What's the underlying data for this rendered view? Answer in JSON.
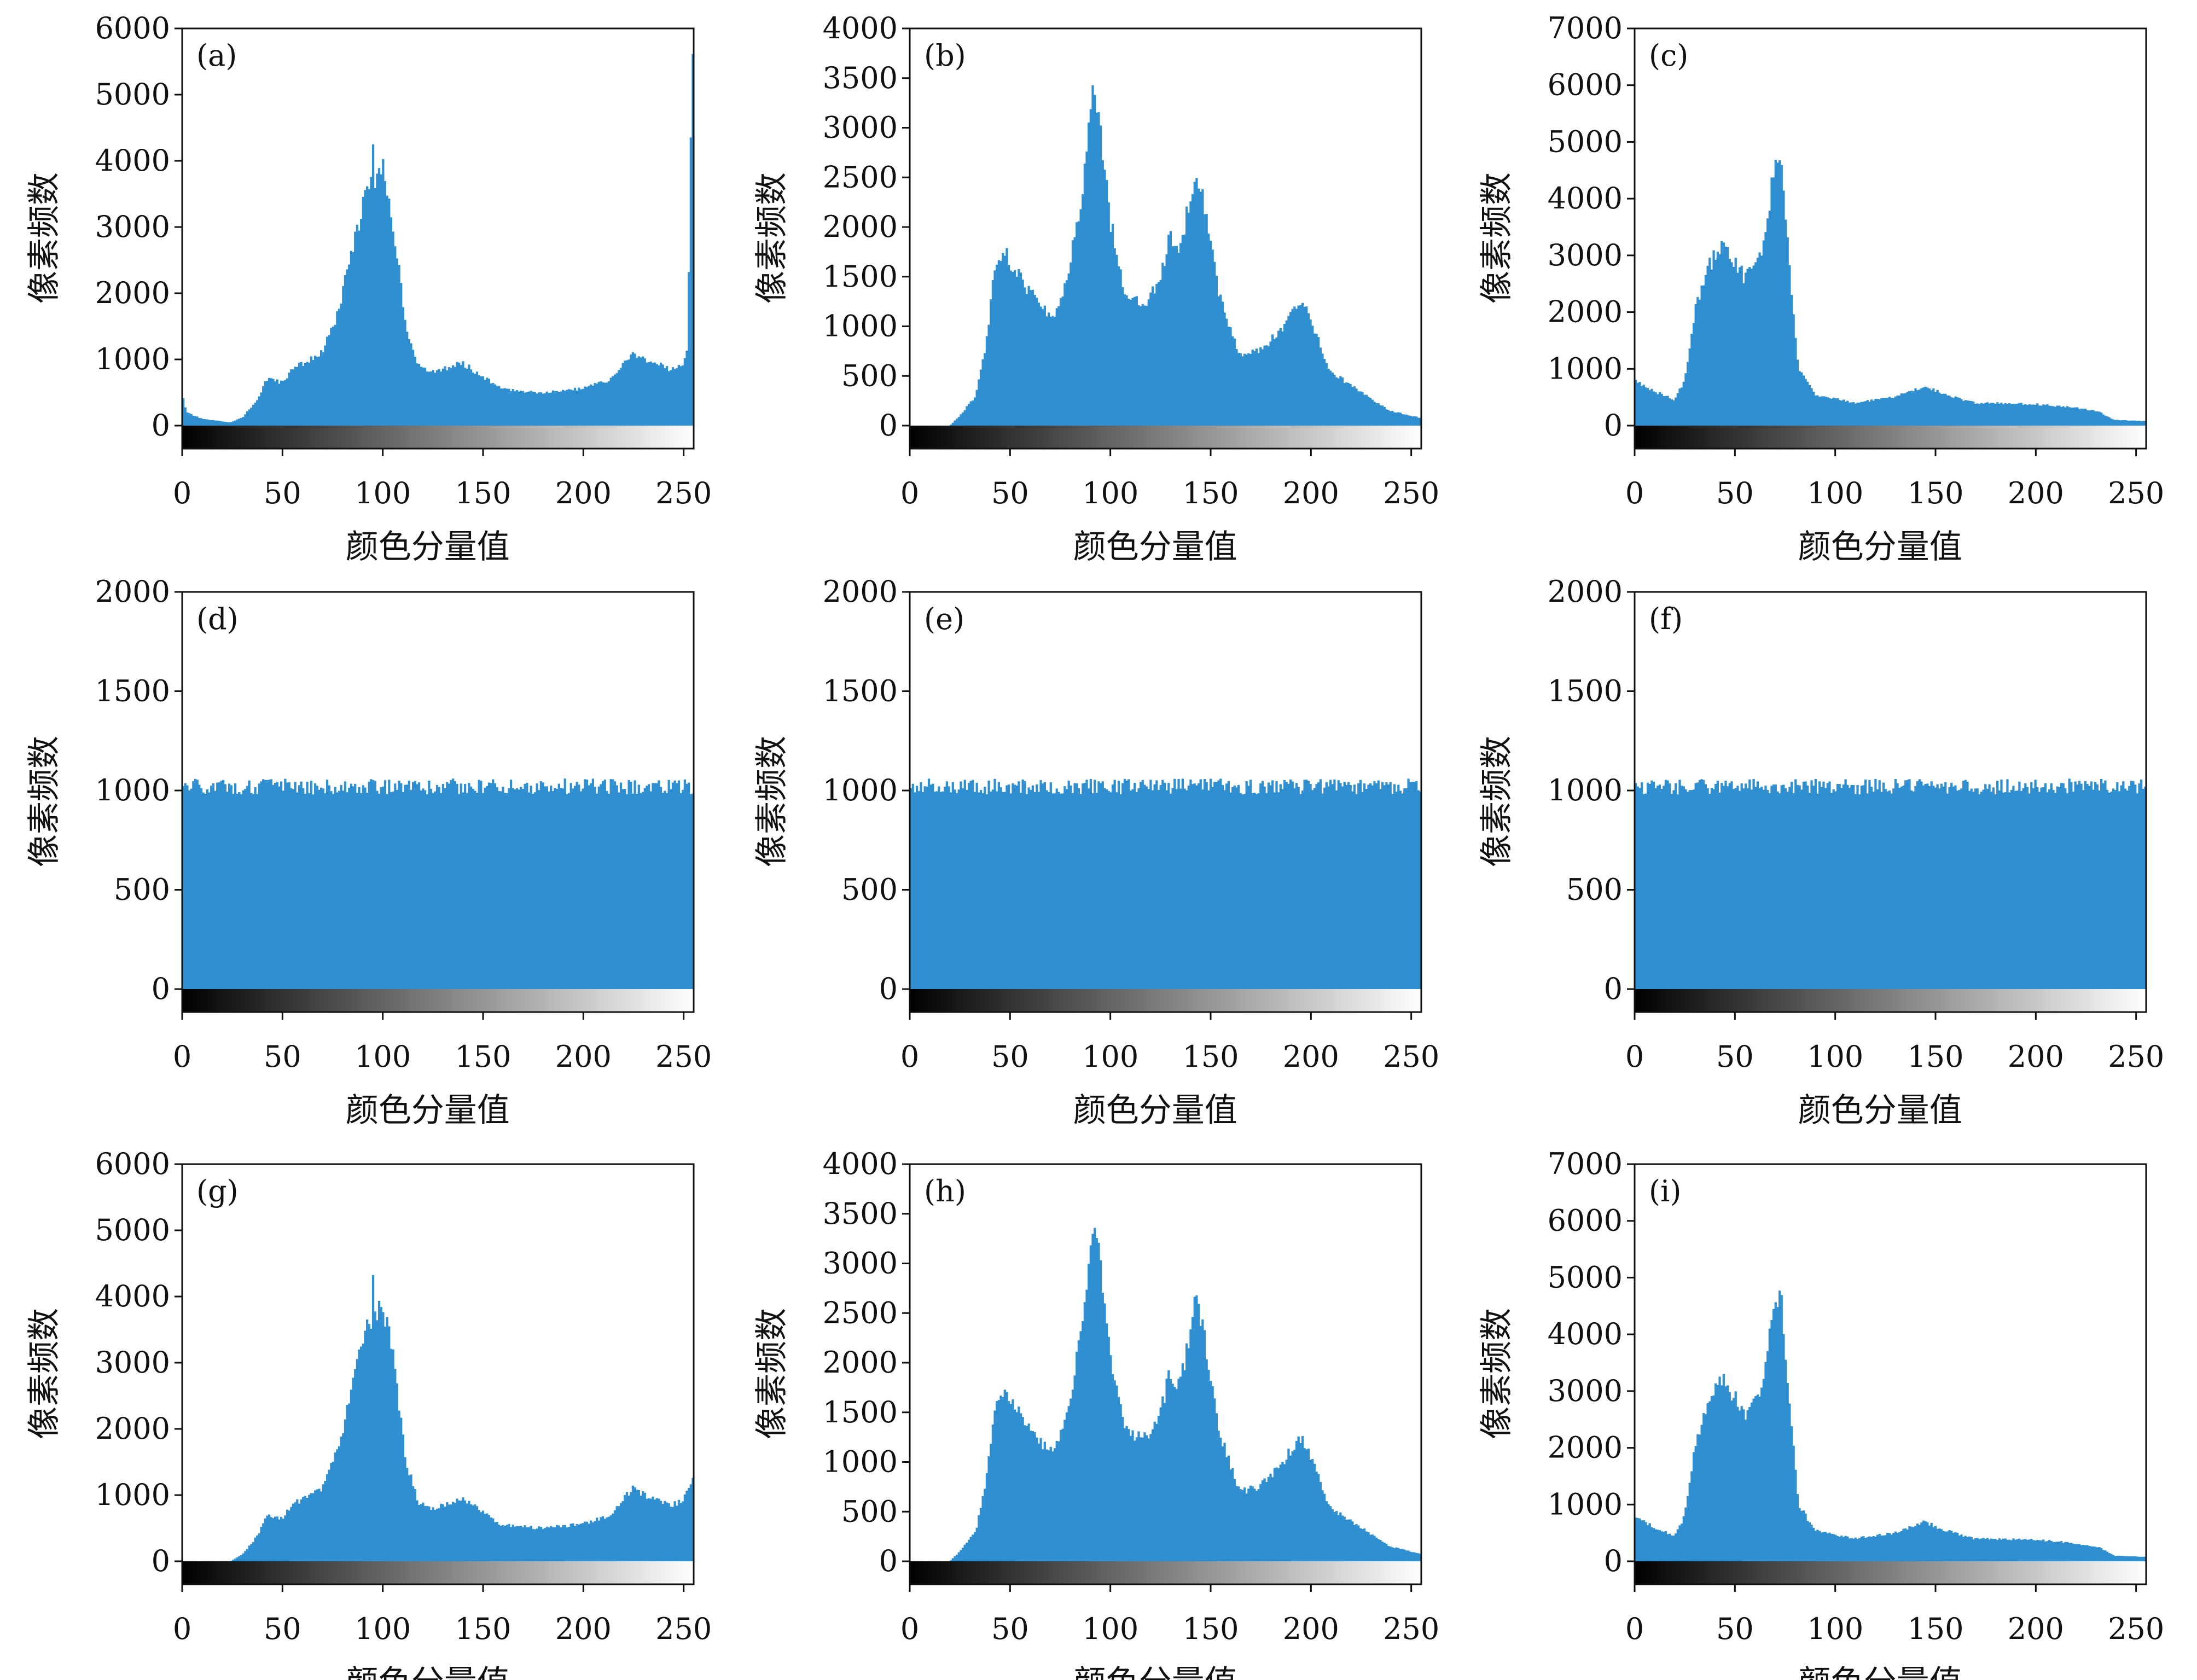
{
  "figure": {
    "description": "3x3 grid of pixel-frequency histograms",
    "bar_color": "#2f8fd0",
    "gradient": [
      "#000000",
      "#ffffff"
    ]
  },
  "chart_data": [
    {
      "type": "histogram",
      "panel_label": "(a)",
      "xlabel": "颜色分量值",
      "ylabel": "像素频数",
      "xlim": [
        0,
        255
      ],
      "ylim": [
        0,
        6000
      ],
      "xticks": [
        0,
        50,
        100,
        150,
        200,
        250
      ],
      "yticks": [
        0,
        1000,
        2000,
        3000,
        4000,
        5000,
        6000
      ],
      "profile": [
        [
          0,
          500
        ],
        [
          2,
          200
        ],
        [
          10,
          100
        ],
        [
          24,
          50
        ],
        [
          30,
          120
        ],
        [
          38,
          400
        ],
        [
          42,
          700
        ],
        [
          50,
          650
        ],
        [
          55,
          850
        ],
        [
          70,
          1100
        ],
        [
          78,
          1700
        ],
        [
          84,
          2500
        ],
        [
          90,
          3300
        ],
        [
          95,
          3700
        ],
        [
          100,
          3800
        ],
        [
          104,
          3400
        ],
        [
          108,
          2500
        ],
        [
          112,
          1500
        ],
        [
          118,
          900
        ],
        [
          125,
          800
        ],
        [
          140,
          950
        ],
        [
          150,
          750
        ],
        [
          160,
          550
        ],
        [
          180,
          500
        ],
        [
          200,
          560
        ],
        [
          215,
          700
        ],
        [
          225,
          1100
        ],
        [
          235,
          950
        ],
        [
          245,
          850
        ],
        [
          250,
          900
        ],
        [
          253,
          1200
        ],
        [
          255,
          5500
        ]
      ],
      "spikes": [
        [
          95,
          4150
        ],
        [
          100,
          3850
        ]
      ]
    },
    {
      "type": "histogram",
      "panel_label": "(b)",
      "xlabel": "颜色分量值",
      "ylabel": "像素频数",
      "xlim": [
        0,
        255
      ],
      "ylim": [
        0,
        4000
      ],
      "xticks": [
        0,
        50,
        100,
        150,
        200,
        250
      ],
      "yticks": [
        0,
        500,
        1000,
        1500,
        2000,
        2500,
        3000,
        3500,
        4000
      ],
      "profile": [
        [
          0,
          0
        ],
        [
          20,
          0
        ],
        [
          25,
          100
        ],
        [
          33,
          300
        ],
        [
          38,
          800
        ],
        [
          42,
          1500
        ],
        [
          47,
          1750
        ],
        [
          55,
          1500
        ],
        [
          65,
          1200
        ],
        [
          72,
          1100
        ],
        [
          78,
          1400
        ],
        [
          85,
          2200
        ],
        [
          90,
          3000
        ],
        [
          92,
          3450
        ],
        [
          95,
          3100
        ],
        [
          100,
          2100
        ],
        [
          108,
          1300
        ],
        [
          118,
          1250
        ],
        [
          125,
          1450
        ],
        [
          130,
          1900
        ],
        [
          135,
          1750
        ],
        [
          140,
          2300
        ],
        [
          143,
          2600
        ],
        [
          148,
          2200
        ],
        [
          155,
          1300
        ],
        [
          165,
          700
        ],
        [
          175,
          750
        ],
        [
          185,
          950
        ],
        [
          195,
          1250
        ],
        [
          200,
          1100
        ],
        [
          210,
          550
        ],
        [
          225,
          350
        ],
        [
          240,
          150
        ],
        [
          255,
          80
        ]
      ],
      "spikes": [
        [
          92,
          3500
        ]
      ]
    },
    {
      "type": "histogram",
      "panel_label": "(c)",
      "xlabel": "颜色分量值",
      "ylabel": "像素频数",
      "xlim": [
        0,
        255
      ],
      "ylim": [
        0,
        7000
      ],
      "xticks": [
        0,
        50,
        100,
        150,
        200,
        250
      ],
      "yticks": [
        0,
        1000,
        2000,
        3000,
        4000,
        5000,
        6000,
        7000
      ],
      "profile": [
        [
          0,
          800
        ],
        [
          10,
          600
        ],
        [
          20,
          450
        ],
        [
          25,
          800
        ],
        [
          30,
          2000
        ],
        [
          37,
          2800
        ],
        [
          44,
          3200
        ],
        [
          50,
          2900
        ],
        [
          55,
          2600
        ],
        [
          62,
          2900
        ],
        [
          66,
          3500
        ],
        [
          70,
          4600
        ],
        [
          73,
          4700
        ],
        [
          77,
          3000
        ],
        [
          82,
          1000
        ],
        [
          90,
          550
        ],
        [
          110,
          400
        ],
        [
          130,
          500
        ],
        [
          145,
          700
        ],
        [
          155,
          550
        ],
        [
          170,
          400
        ],
        [
          200,
          380
        ],
        [
          220,
          320
        ],
        [
          232,
          250
        ],
        [
          240,
          100
        ],
        [
          255,
          80
        ]
      ],
      "spikes": []
    },
    {
      "type": "histogram",
      "panel_label": "(d)",
      "xlabel": "颜色分量值",
      "ylabel": "像素频数",
      "xlim": [
        0,
        255
      ],
      "ylim": [
        0,
        2000
      ],
      "xticks": [
        0,
        50,
        100,
        150,
        200,
        250
      ],
      "yticks": [
        0,
        500,
        1000,
        1500,
        2000
      ],
      "profile": [
        [
          0,
          1020
        ],
        [
          255,
          1020
        ]
      ],
      "spikes": []
    },
    {
      "type": "histogram",
      "panel_label": "(e)",
      "xlabel": "颜色分量值",
      "ylabel": "像素频数",
      "xlim": [
        0,
        255
      ],
      "ylim": [
        0,
        2000
      ],
      "xticks": [
        0,
        50,
        100,
        150,
        200,
        250
      ],
      "yticks": [
        0,
        500,
        1000,
        1500,
        2000
      ],
      "profile": [
        [
          0,
          1020
        ],
        [
          255,
          1020
        ]
      ],
      "spikes": []
    },
    {
      "type": "histogram",
      "panel_label": "(f)",
      "xlabel": "颜色分量值",
      "ylabel": "像素频数",
      "xlim": [
        0,
        255
      ],
      "ylim": [
        0,
        2000
      ],
      "xticks": [
        0,
        50,
        100,
        150,
        200,
        250
      ],
      "yticks": [
        0,
        500,
        1000,
        1500,
        2000
      ],
      "profile": [
        [
          0,
          1020
        ],
        [
          255,
          1020
        ]
      ],
      "spikes": []
    },
    {
      "type": "histogram",
      "panel_label": "(g)",
      "xlabel": "颜色分量值",
      "ylabel": "像素频数",
      "xlim": [
        0,
        255
      ],
      "ylim": [
        0,
        6000
      ],
      "xticks": [
        0,
        50,
        100,
        150,
        200,
        250
      ],
      "yticks": [
        0,
        1000,
        2000,
        3000,
        4000,
        5000,
        6000
      ],
      "profile": [
        [
          0,
          0
        ],
        [
          24,
          0
        ],
        [
          30,
          100
        ],
        [
          38,
          400
        ],
        [
          42,
          700
        ],
        [
          50,
          650
        ],
        [
          55,
          850
        ],
        [
          70,
          1100
        ],
        [
          78,
          1700
        ],
        [
          84,
          2500
        ],
        [
          90,
          3300
        ],
        [
          95,
          3700
        ],
        [
          100,
          3800
        ],
        [
          104,
          3400
        ],
        [
          108,
          2500
        ],
        [
          112,
          1500
        ],
        [
          118,
          900
        ],
        [
          125,
          800
        ],
        [
          140,
          950
        ],
        [
          150,
          750
        ],
        [
          160,
          550
        ],
        [
          180,
          500
        ],
        [
          200,
          560
        ],
        [
          215,
          700
        ],
        [
          225,
          1100
        ],
        [
          235,
          950
        ],
        [
          245,
          850
        ],
        [
          250,
          900
        ],
        [
          255,
          1200
        ]
      ],
      "spikes": [
        [
          95,
          4150
        ],
        [
          100,
          3850
        ]
      ]
    },
    {
      "type": "histogram",
      "panel_label": "(h)",
      "xlabel": "颜色分量值",
      "ylabel": "像素频数",
      "xlim": [
        0,
        255
      ],
      "ylim": [
        0,
        4000
      ],
      "xticks": [
        0,
        50,
        100,
        150,
        200,
        250
      ],
      "yticks": [
        0,
        500,
        1000,
        1500,
        2000,
        2500,
        3000,
        3500,
        4000
      ],
      "profile": [
        [
          0,
          0
        ],
        [
          20,
          0
        ],
        [
          25,
          100
        ],
        [
          33,
          300
        ],
        [
          38,
          800
        ],
        [
          42,
          1500
        ],
        [
          47,
          1750
        ],
        [
          55,
          1500
        ],
        [
          65,
          1200
        ],
        [
          72,
          1100
        ],
        [
          78,
          1400
        ],
        [
          85,
          2200
        ],
        [
          90,
          3000
        ],
        [
          92,
          3450
        ],
        [
          95,
          3100
        ],
        [
          100,
          2100
        ],
        [
          108,
          1300
        ],
        [
          118,
          1250
        ],
        [
          125,
          1450
        ],
        [
          130,
          1900
        ],
        [
          135,
          1750
        ],
        [
          140,
          2300
        ],
        [
          143,
          2600
        ],
        [
          148,
          2200
        ],
        [
          155,
          1300
        ],
        [
          165,
          700
        ],
        [
          175,
          750
        ],
        [
          185,
          950
        ],
        [
          195,
          1250
        ],
        [
          200,
          1100
        ],
        [
          210,
          550
        ],
        [
          225,
          350
        ],
        [
          240,
          150
        ],
        [
          255,
          80
        ]
      ],
      "spikes": [
        [
          92,
          3500
        ]
      ]
    },
    {
      "type": "histogram",
      "panel_label": "(i)",
      "xlabel": "颜色分量值",
      "ylabel": "像素频数",
      "xlim": [
        0,
        255
      ],
      "ylim": [
        0,
        7000
      ],
      "xticks": [
        0,
        50,
        100,
        150,
        200,
        250
      ],
      "yticks": [
        0,
        1000,
        2000,
        3000,
        4000,
        5000,
        6000,
        7000
      ],
      "profile": [
        [
          0,
          800
        ],
        [
          10,
          600
        ],
        [
          20,
          450
        ],
        [
          25,
          800
        ],
        [
          30,
          2000
        ],
        [
          37,
          2800
        ],
        [
          44,
          3200
        ],
        [
          50,
          2900
        ],
        [
          55,
          2600
        ],
        [
          62,
          2900
        ],
        [
          66,
          3500
        ],
        [
          70,
          4600
        ],
        [
          73,
          4700
        ],
        [
          77,
          3000
        ],
        [
          82,
          1000
        ],
        [
          90,
          550
        ],
        [
          110,
          400
        ],
        [
          130,
          500
        ],
        [
          145,
          700
        ],
        [
          155,
          550
        ],
        [
          170,
          400
        ],
        [
          200,
          380
        ],
        [
          220,
          320
        ],
        [
          232,
          250
        ],
        [
          240,
          100
        ],
        [
          255,
          80
        ]
      ],
      "spikes": []
    }
  ]
}
